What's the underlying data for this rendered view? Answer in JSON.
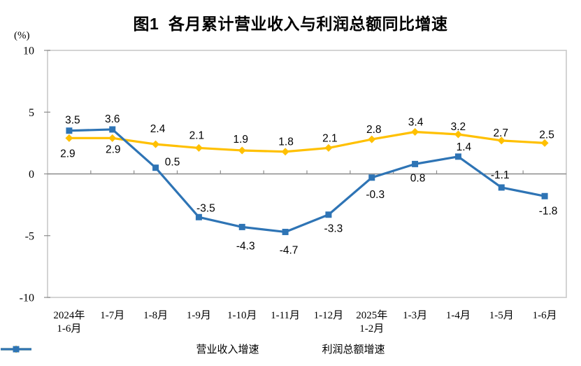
{
  "chart_data": {
    "type": "line",
    "title": "图1  各月累计营业收入与利润总额同比增速",
    "y_unit": "(%)",
    "ylim": [
      -10,
      10
    ],
    "yticks": [
      10,
      5,
      0,
      -5,
      -10
    ],
    "grid": false,
    "legend_position": "bottom",
    "categories": [
      "2024年\n1-6月",
      "1-7月",
      "1-8月",
      "1-9月",
      "1-10月",
      "1-11月",
      "1-12月",
      "2025年\n1-2月",
      "1-3月",
      "1-4月",
      "1-5月",
      "1-6月"
    ],
    "series": [
      {
        "name": "营业收入增速",
        "color": "#FFC000",
        "marker": "diamond",
        "values": [
          2.9,
          2.9,
          2.4,
          2.1,
          1.9,
          1.8,
          2.1,
          2.8,
          3.4,
          3.2,
          2.7,
          2.5
        ],
        "label_offsets": [
          [
            -2,
            27
          ],
          [
            1,
            21
          ],
          [
            3,
            -17
          ],
          [
            -3,
            -13
          ],
          [
            -2,
            -11
          ],
          [
            1,
            -9
          ],
          [
            2,
            -9
          ],
          [
            3,
            -9
          ],
          [
            1,
            -9
          ],
          [
            0,
            -6
          ],
          [
            -1,
            -6
          ],
          [
            3,
            -7
          ]
        ]
      },
      {
        "name": "利润总额增速",
        "color": "#2E74B5",
        "marker": "square",
        "values": [
          3.5,
          3.6,
          0.5,
          -3.5,
          -4.3,
          -4.7,
          -3.3,
          -0.3,
          0.8,
          1.4,
          -1.1,
          -1.8
        ],
        "label_offsets": [
          [
            5,
            -10
          ],
          [
            0,
            -10
          ],
          [
            24,
            -3
          ],
          [
            10,
            -8
          ],
          [
            5,
            32
          ],
          [
            5,
            31
          ],
          [
            7,
            25
          ],
          [
            5,
            29
          ],
          [
            4,
            25
          ],
          [
            8,
            -9
          ],
          [
            -2,
            -13
          ],
          [
            5,
            26
          ]
        ]
      }
    ],
    "axis_colors": {
      "border": "#C9C9C9",
      "zero_line": "#8C8C8C"
    }
  }
}
